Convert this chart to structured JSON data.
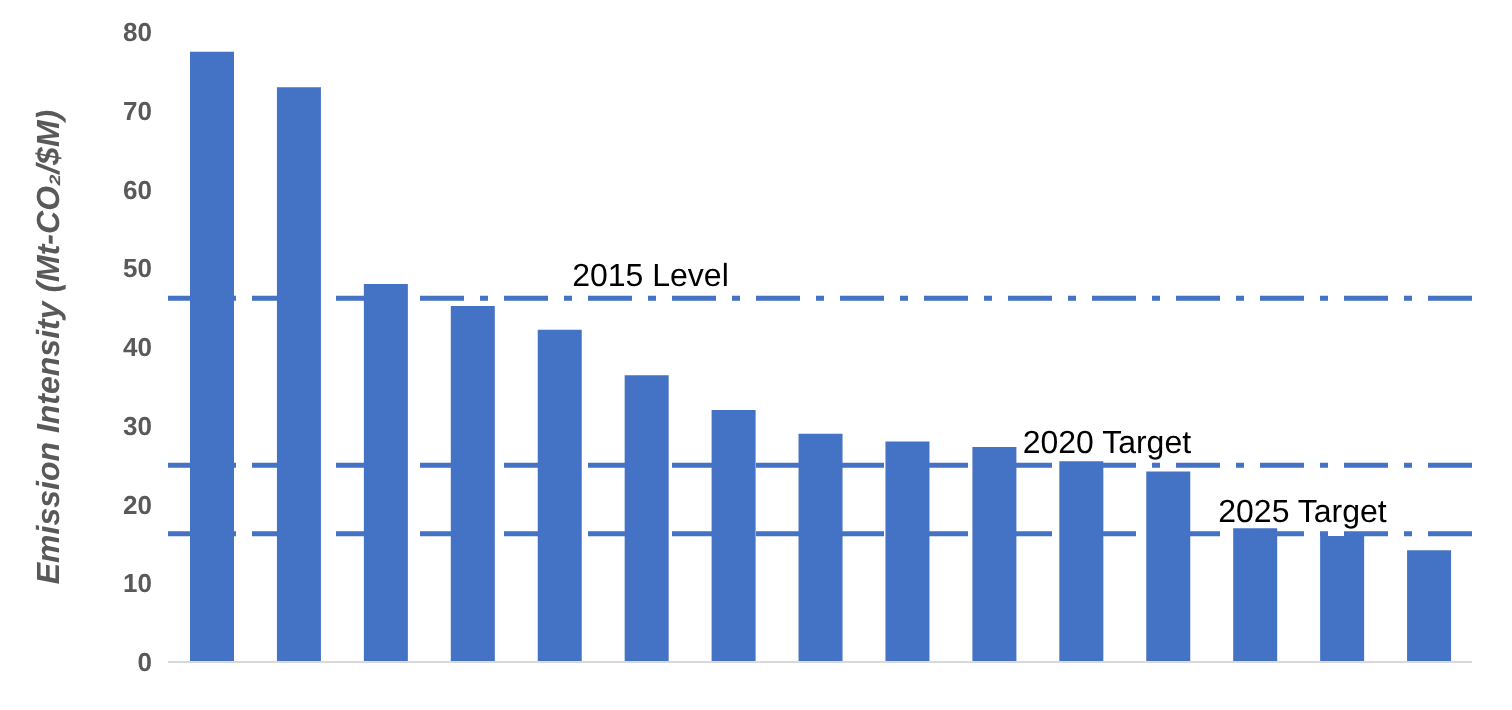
{
  "chart_data": {
    "type": "bar",
    "ylabel": "Emission Intensity (Mt-CO₂/$M)",
    "categories": [
      null,
      null,
      null,
      null,
      null,
      null,
      null,
      null,
      null,
      null,
      null,
      null,
      null,
      null,
      null
    ],
    "values": [
      77.5,
      73,
      48,
      45.2,
      42.2,
      36.4,
      32,
      29,
      28,
      27.3,
      25.5,
      24.2,
      17,
      16,
      14.2
    ],
    "color": "#4472c4",
    "ylim": [
      0,
      80
    ],
    "yticks": [
      0,
      10,
      20,
      30,
      40,
      50,
      60,
      70,
      80
    ],
    "grid": false,
    "legend": false,
    "ref_lines": [
      {
        "axis": "y",
        "value": 46.2,
        "label": "2015 Level",
        "color": "#4472c4",
        "line_style": "dashdot"
      },
      {
        "axis": "y",
        "value": 25,
        "label": "2020 Target",
        "color": "#4472c4",
        "line_style": "dashdot"
      },
      {
        "axis": "y",
        "value": 16.3,
        "label": "2025 Target",
        "color": "#4472c4",
        "line_style": "dashdot"
      }
    ]
  }
}
